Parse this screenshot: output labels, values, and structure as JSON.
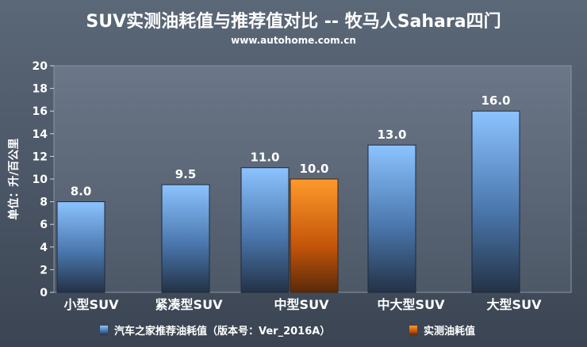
{
  "chart_data": {
    "type": "bar",
    "title": "SUV实测油耗值与推荐值对比 -- 牧马人Sahara四门",
    "subtitle": "www.autohome.com.cn",
    "ylabel": "单位：升/百公里",
    "ylim": [
      0,
      20
    ],
    "yticks": [
      0,
      2,
      4,
      6,
      8,
      10,
      12,
      14,
      16,
      18,
      20
    ],
    "categories": [
      "小型SUV",
      "紧凑型SUV",
      "中型SUV",
      "中大型SUV",
      "大型SUV"
    ],
    "series": [
      {
        "name": "汽车之家推荐油耗值（版本号：Ver_2016A）",
        "values": [
          8.0,
          9.5,
          11.0,
          13.0,
          16.0
        ],
        "color": "#7fb2ee"
      },
      {
        "name": "实测油耗值",
        "values": [
          null,
          null,
          10.0,
          null,
          null
        ],
        "color": "#ff8a1c"
      }
    ],
    "value_labels": [
      [
        "8.0",
        "9.5",
        "11.0",
        "13.0",
        "16.0"
      ],
      [
        null,
        null,
        "10.0",
        null,
        null
      ]
    ],
    "grid": false,
    "legend_position": "bottom"
  }
}
